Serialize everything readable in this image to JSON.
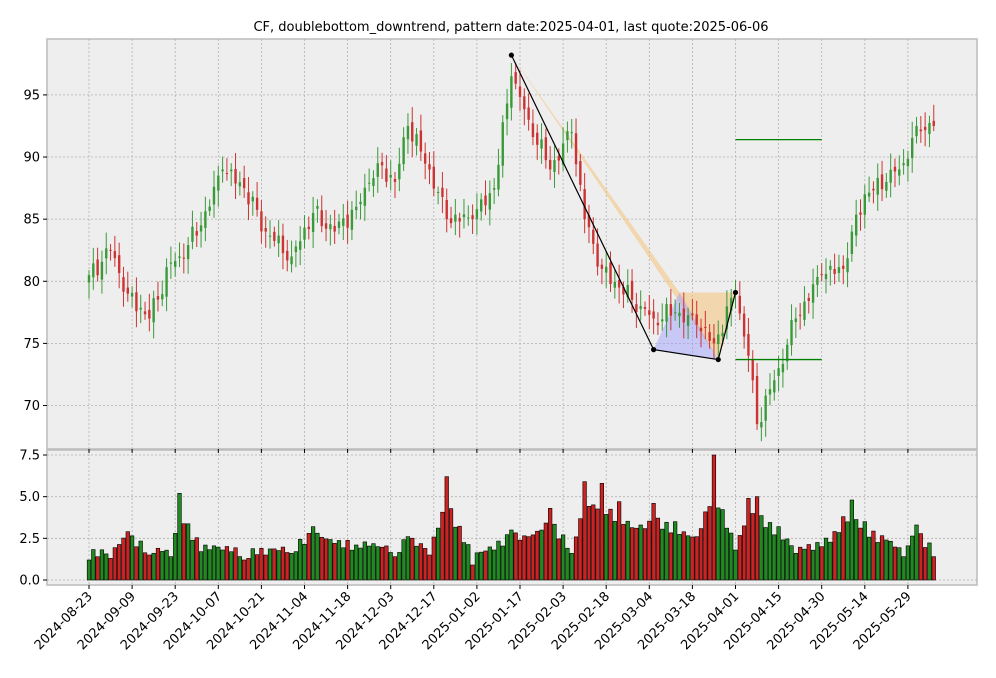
{
  "chart_data": {
    "title": "CF, doublebottom_downtrend, pattern date:2025-04-01, last quote:2025-06-06",
    "type": "candlestick",
    "price_panel": {
      "ylim": [
        66.5,
        99.5
      ],
      "yticks": [
        70,
        75,
        80,
        85,
        90,
        95
      ],
      "grid": true
    },
    "volume_panel": {
      "ylim": [
        -0.3,
        7.8
      ],
      "yticks": [
        0.0,
        2.5,
        5.0,
        7.5
      ],
      "grid": true
    },
    "x_ticks": [
      "2024-08-23",
      "2024-09-09",
      "2024-09-23",
      "2024-10-07",
      "2024-10-21",
      "2024-11-04",
      "2024-11-18",
      "2024-12-03",
      "2024-12-17",
      "2025-01-02",
      "2025-01-17",
      "2025-02-03",
      "2025-02-18",
      "2025-03-04",
      "2025-03-18",
      "2025-04-01",
      "2025-04-15",
      "2025-04-30",
      "2025-05-14",
      "2025-05-29"
    ],
    "pattern_points": [
      {
        "date": "2025-01-15",
        "price": 98.2
      },
      {
        "date": "2025-03-05",
        "price": 74.5
      },
      {
        "date": "2025-03-26",
        "price": 73.7
      },
      {
        "date": "2025-04-01",
        "price": 79.1
      }
    ],
    "levels": [
      {
        "price": 91.4,
        "from": "2025-04-01",
        "to": "2025-04-30",
        "color": "#008000"
      },
      {
        "price": 73.7,
        "from": "2025-04-01",
        "to": "2025-04-30",
        "color": "#008000"
      }
    ],
    "candle_anchors": [
      {
        "date": "2024-08-23",
        "close": 80.5,
        "volume": 1.2
      },
      {
        "date": "2024-08-30",
        "close": 82.5,
        "volume": 1.3
      },
      {
        "date": "2024-09-06",
        "close": 79.0,
        "volume": 2.9
      },
      {
        "date": "2024-09-13",
        "close": 77.0,
        "volume": 1.5
      },
      {
        "date": "2024-09-20",
        "close": 81.5,
        "volume": 1.4
      },
      {
        "date": "2024-09-24",
        "close": 82.0,
        "volume": 5.2
      },
      {
        "date": "2024-10-01",
        "close": 84.5,
        "volume": 1.7
      },
      {
        "date": "2024-10-08",
        "close": 89.0,
        "volume": 1.8
      },
      {
        "date": "2024-10-15",
        "close": 87.5,
        "volume": 1.2
      },
      {
        "date": "2024-10-22",
        "close": 84.0,
        "volume": 1.5
      },
      {
        "date": "2024-10-30",
        "close": 82.0,
        "volume": 1.6
      },
      {
        "date": "2024-11-06",
        "close": 85.5,
        "volume": 3.2
      },
      {
        "date": "2024-11-13",
        "close": 84.0,
        "volume": 2.2
      },
      {
        "date": "2024-11-20",
        "close": 86.0,
        "volume": 2.1
      },
      {
        "date": "2024-11-27",
        "close": 89.5,
        "volume": 2.0
      },
      {
        "date": "2024-12-04",
        "close": 88.0,
        "volume": 1.4
      },
      {
        "date": "2024-12-09",
        "close": 92.5,
        "volume": 2.6
      },
      {
        "date": "2024-12-16",
        "close": 89.0,
        "volume": 1.5
      },
      {
        "date": "2024-12-20",
        "close": 85.0,
        "volume": 6.2
      },
      {
        "date": "2024-12-31",
        "close": 85.0,
        "volume": 0.9
      },
      {
        "date": "2025-01-08",
        "close": 87.5,
        "volume": 1.8
      },
      {
        "date": "2025-01-15",
        "close": 96.5,
        "volume": 3.0
      },
      {
        "date": "2025-01-22",
        "close": 93.0,
        "volume": 2.6
      },
      {
        "date": "2025-01-29",
        "close": 89.0,
        "volume": 4.3
      },
      {
        "date": "2025-02-05",
        "close": 92.0,
        "volume": 1.6
      },
      {
        "date": "2025-02-10",
        "close": 85.0,
        "volume": 5.9
      },
      {
        "date": "2025-02-14",
        "close": 81.0,
        "volume": 5.8
      },
      {
        "date": "2025-02-21",
        "close": 79.5,
        "volume": 4.7
      },
      {
        "date": "2025-02-28",
        "close": 78.0,
        "volume": 3.3
      },
      {
        "date": "2025-03-05",
        "close": 77.0,
        "volume": 4.6
      },
      {
        "date": "2025-03-12",
        "close": 77.5,
        "volume": 3.5
      },
      {
        "date": "2025-03-19",
        "close": 76.5,
        "volume": 2.6
      },
      {
        "date": "2025-03-25",
        "close": 75.0,
        "volume": 7.5
      },
      {
        "date": "2025-04-01",
        "close": 79.0,
        "volume": 1.8
      },
      {
        "date": "2025-04-04",
        "close": 74.0,
        "volume": 4.9
      },
      {
        "date": "2025-04-08",
        "close": 68.5,
        "volume": 5.0
      },
      {
        "date": "2025-04-15",
        "close": 73.0,
        "volume": 3.2
      },
      {
        "date": "2025-04-22",
        "close": 77.0,
        "volume": 1.6
      },
      {
        "date": "2025-04-30",
        "close": 80.5,
        "volume": 2.0
      },
      {
        "date": "2025-05-07",
        "close": 81.0,
        "volume": 3.8
      },
      {
        "date": "2025-05-09",
        "close": 84.0,
        "volume": 4.8
      },
      {
        "date": "2025-05-14",
        "close": 87.0,
        "volume": 3.5
      },
      {
        "date": "2025-05-21",
        "close": 88.0,
        "volume": 2.4
      },
      {
        "date": "2025-05-28",
        "close": 89.5,
        "volume": 1.4
      },
      {
        "date": "2025-06-02",
        "close": 92.5,
        "volume": 3.3
      },
      {
        "date": "2025-06-06",
        "close": 92.5,
        "volume": 1.4
      }
    ]
  }
}
